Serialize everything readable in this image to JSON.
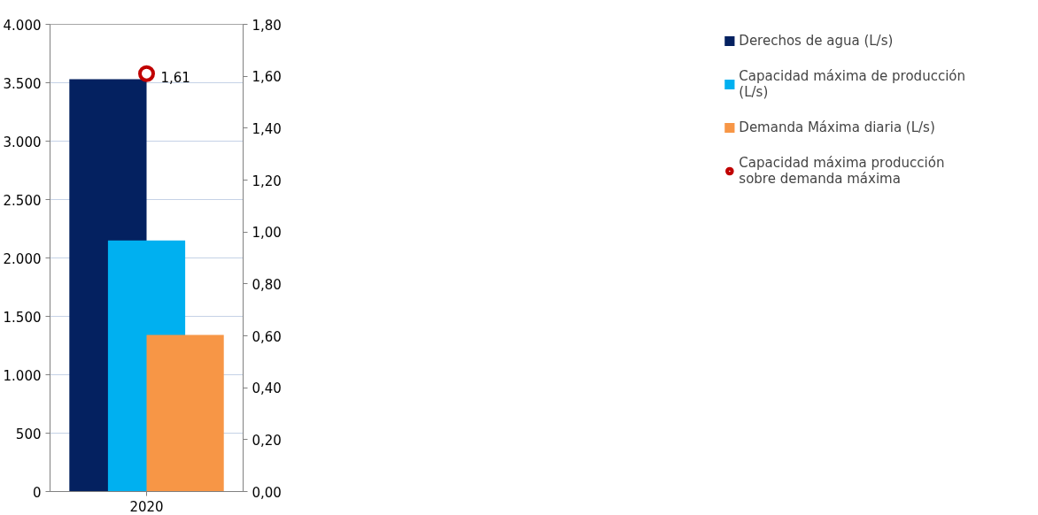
{
  "chart_data": {
    "type": "bar",
    "categories": [
      "2020"
    ],
    "series": [
      {
        "name": "Derechos de agua (L/s)",
        "color": "#042160",
        "values": [
          3530
        ]
      },
      {
        "name": "Capacidad máxima de producción (L/s)",
        "color": "#00b0f0",
        "values": [
          2150
        ]
      },
      {
        "name": "Demanda Máxima diaria (L/s)",
        "color": "#f79646",
        "values": [
          1340
        ]
      },
      {
        "name": "Capacidad máxima producción sobre demanda máxima",
        "type": "scatter",
        "axis": "y2",
        "color": "#c00000",
        "marker": "circle",
        "values": [
          1.61
        ],
        "value_labels": [
          "1,61"
        ]
      }
    ],
    "ylim": [
      0,
      4000
    ],
    "yticks": [
      0,
      500,
      {
        "value": 1000,
        "label": "1.000"
      },
      {
        "value": 1500,
        "label": "1.500"
      },
      {
        "value": 2000,
        "label": "2.000"
      },
      {
        "value": 2500,
        "label": "2.500"
      },
      {
        "value": 3000,
        "label": "3.000"
      },
      {
        "value": 3500,
        "label": "3.500"
      },
      {
        "value": 4000,
        "label": "4.000"
      }
    ],
    "y2lim": [
      0,
      1.8
    ],
    "y2ticks": [
      {
        "value": 0,
        "label": "0,00"
      },
      {
        "value": 0.2,
        "label": "0,20"
      },
      {
        "value": 0.4,
        "label": "0,40"
      },
      {
        "value": 0.6,
        "label": "0,60"
      },
      {
        "value": 0.8,
        "label": "0,80"
      },
      {
        "value": 1.0,
        "label": "1,00"
      },
      {
        "value": 1.2,
        "label": "1,20"
      },
      {
        "value": 1.4,
        "label": "1,40"
      },
      {
        "value": 1.6,
        "label": "1,60"
      },
      {
        "value": 1.8,
        "label": "1,80"
      }
    ],
    "grid": "y",
    "legend": "right"
  }
}
